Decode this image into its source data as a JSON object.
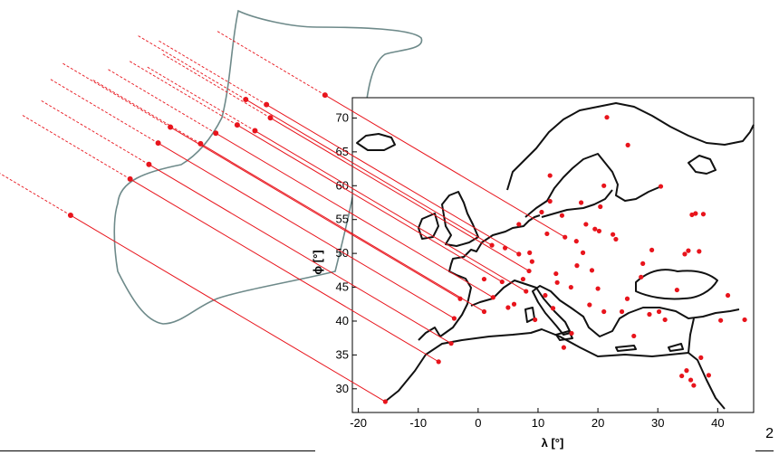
{
  "page_number": "2",
  "map": {
    "xticks": [
      -20,
      -10,
      0,
      10,
      20,
      30,
      40
    ],
    "yticks": [
      30,
      35,
      40,
      45,
      50,
      55,
      60,
      65,
      70
    ],
    "xlabel": "λ [°]",
    "ylabel": "ϕ [°]",
    "xlim": [
      -21,
      46
    ],
    "ylim": [
      26.5,
      73
    ]
  },
  "colors": {
    "points": "#e8141c",
    "outline": "#6e8a8a",
    "coast": "#111111"
  },
  "projection": {
    "lon": [
      -15.5,
      -6.6,
      -4.5,
      -4.0,
      -3.0,
      1.0,
      2.5,
      8.0,
      4.0,
      8.5,
      6.8,
      2.3,
      14.5
    ],
    "lat": [
      28.1,
      34.0,
      36.7,
      40.4,
      43.3,
      41.4,
      43.5,
      44.4,
      45.8,
      47.4,
      49.9,
      51.2,
      52.4
    ]
  },
  "stations": {
    "lon": [
      -15.5,
      -6.6,
      -4.5,
      -4.0,
      -3.0,
      1.0,
      2.5,
      4.0,
      6.8,
      8.0,
      8.5,
      9.5,
      11.2,
      12.5,
      13.2,
      14.5,
      15.6,
      16.5,
      17.5,
      18.0,
      19.0,
      20.0,
      20.2,
      20.4,
      21.0,
      23.0,
      24.0,
      25.0,
      26.0,
      27.2,
      28.6,
      29.0,
      30.5,
      33.2,
      34.5,
      35.1,
      35.7,
      36.3,
      37.6,
      38.5,
      12.0,
      14.0,
      10.6,
      11.5,
      9.0,
      8.6,
      6.8,
      7.5,
      2.3,
      4.5,
      1.0,
      6.0,
      5.0,
      13.0,
      16.4,
      17.2,
      19.5,
      18.6,
      21.0,
      22.5,
      24.9,
      27.5,
      30.2,
      31.2,
      36.9,
      37.2,
      40.5,
      41.7,
      44.5,
      34.0,
      36.0,
      35.5,
      34.8,
      21.5,
      12.0,
      15.5,
      14.3
    ],
    "lat": [
      28.1,
      34.0,
      36.7,
      40.4,
      43.3,
      41.4,
      43.5,
      45.8,
      49.9,
      44.4,
      47.4,
      40.2,
      43.8,
      41.9,
      45.7,
      52.4,
      38.2,
      48.2,
      50.1,
      54.3,
      47.5,
      44.8,
      53.3,
      56.9,
      60.0,
      52.1,
      41.4,
      66.0,
      37.8,
      46.5,
      41.0,
      50.5,
      59.9,
      44.6,
      49.9,
      50.4,
      55.7,
      55.9,
      55.8,
      32.0,
      57.7,
      55.6,
      56.1,
      52.9,
      48.8,
      50.1,
      54.3,
      46.2,
      51.2,
      50.8,
      46.2,
      42.5,
      42.0,
      47.0,
      51.8,
      57.5,
      53.6,
      42.4,
      41.4,
      52.8,
      43.3,
      48.5,
      41.4,
      40.2,
      50.3,
      34.6,
      40.1,
      43.8,
      40.2,
      31.9,
      30.5,
      31.3,
      32.7,
      70.1,
      61.5,
      45.0,
      36.1
    ]
  }
}
